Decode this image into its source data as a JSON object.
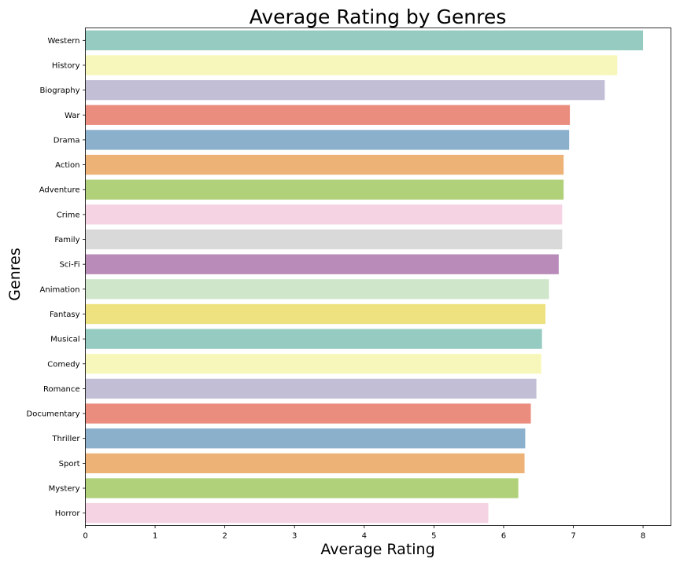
{
  "chart_data": {
    "type": "bar",
    "orientation": "horizontal",
    "title": "Average Rating by Genres",
    "xlabel": "Average Rating",
    "ylabel": "Genres",
    "xlim": [
      0,
      8.4
    ],
    "xticks": [
      "0",
      "1",
      "2",
      "3",
      "4",
      "5",
      "6",
      "7",
      "8"
    ],
    "grid": false,
    "legend": "none",
    "categories": [
      "Western",
      "History",
      "Biography",
      "War",
      "Drama",
      "Action",
      "Adventure",
      "Crime",
      "Family",
      "Sci-Fi",
      "Animation",
      "Fantasy",
      "Musical",
      "Comedy",
      "Romance",
      "Documentary",
      "Thriller",
      "Sport",
      "Mystery",
      "Horror"
    ],
    "values": [
      8.0,
      7.63,
      7.45,
      6.95,
      6.94,
      6.86,
      6.86,
      6.84,
      6.84,
      6.79,
      6.65,
      6.6,
      6.55,
      6.54,
      6.47,
      6.39,
      6.31,
      6.3,
      6.21,
      5.78
    ],
    "colors": [
      "#96cbc1",
      "#f7f7bb",
      "#c1bed6",
      "#ea8d7f",
      "#8bb0cc",
      "#edb276",
      "#b0d079",
      "#f5d3e3",
      "#d9d9d9",
      "#b88bb9",
      "#cfe6cb",
      "#ede27f",
      "#96cbc1",
      "#f7f7bb",
      "#c1bed6",
      "#ea8d7f",
      "#8bb0cc",
      "#edb276",
      "#b0d079",
      "#f5d3e3"
    ]
  }
}
